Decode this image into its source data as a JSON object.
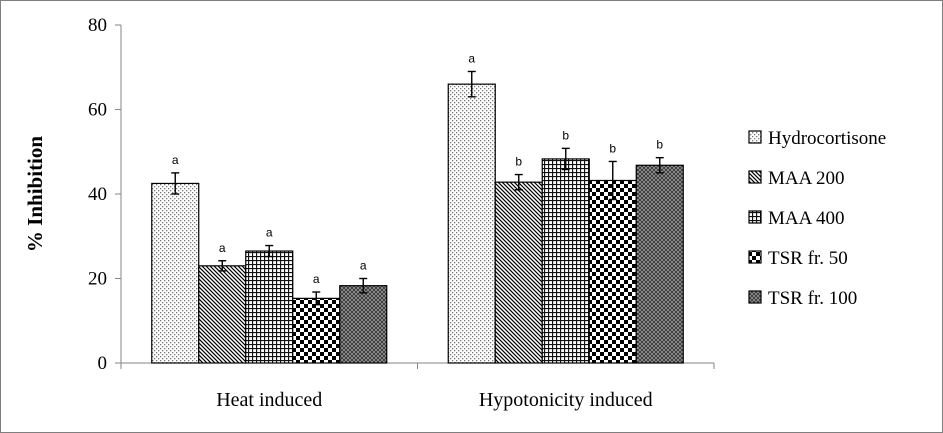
{
  "chart_data": {
    "type": "bar",
    "title": "",
    "xlabel": "",
    "ylabel": "% Inhibition",
    "ylim": [
      0,
      80
    ],
    "yticks": [
      0,
      20,
      40,
      60,
      80
    ],
    "grid": false,
    "legend_position": "right",
    "categories": [
      "Heat induced",
      "Hypotonicity induced"
    ],
    "series": [
      {
        "name": "Hydrocortisone",
        "values": [
          42.5,
          66.0
        ],
        "errors": [
          2.5,
          3.0
        ],
        "labels": [
          "a",
          "a"
        ],
        "pattern": "dots"
      },
      {
        "name": "MAA 200",
        "values": [
          23.0,
          42.8
        ],
        "errors": [
          1.2,
          1.8
        ],
        "labels": [
          "a",
          "b"
        ],
        "pattern": "diagonal"
      },
      {
        "name": "MAA 400",
        "values": [
          26.5,
          48.3
        ],
        "errors": [
          1.3,
          2.5
        ],
        "labels": [
          "a",
          "b"
        ],
        "pattern": "grid"
      },
      {
        "name": "TSR fr. 50",
        "values": [
          15.3,
          43.2
        ],
        "errors": [
          1.5,
          4.5
        ],
        "labels": [
          "a",
          "b"
        ],
        "pattern": "checker"
      },
      {
        "name": "TSR fr. 100",
        "values": [
          18.3,
          46.8
        ],
        "errors": [
          1.7,
          1.8
        ],
        "labels": [
          "a",
          "b"
        ],
        "pattern": "crosshatch"
      }
    ]
  }
}
